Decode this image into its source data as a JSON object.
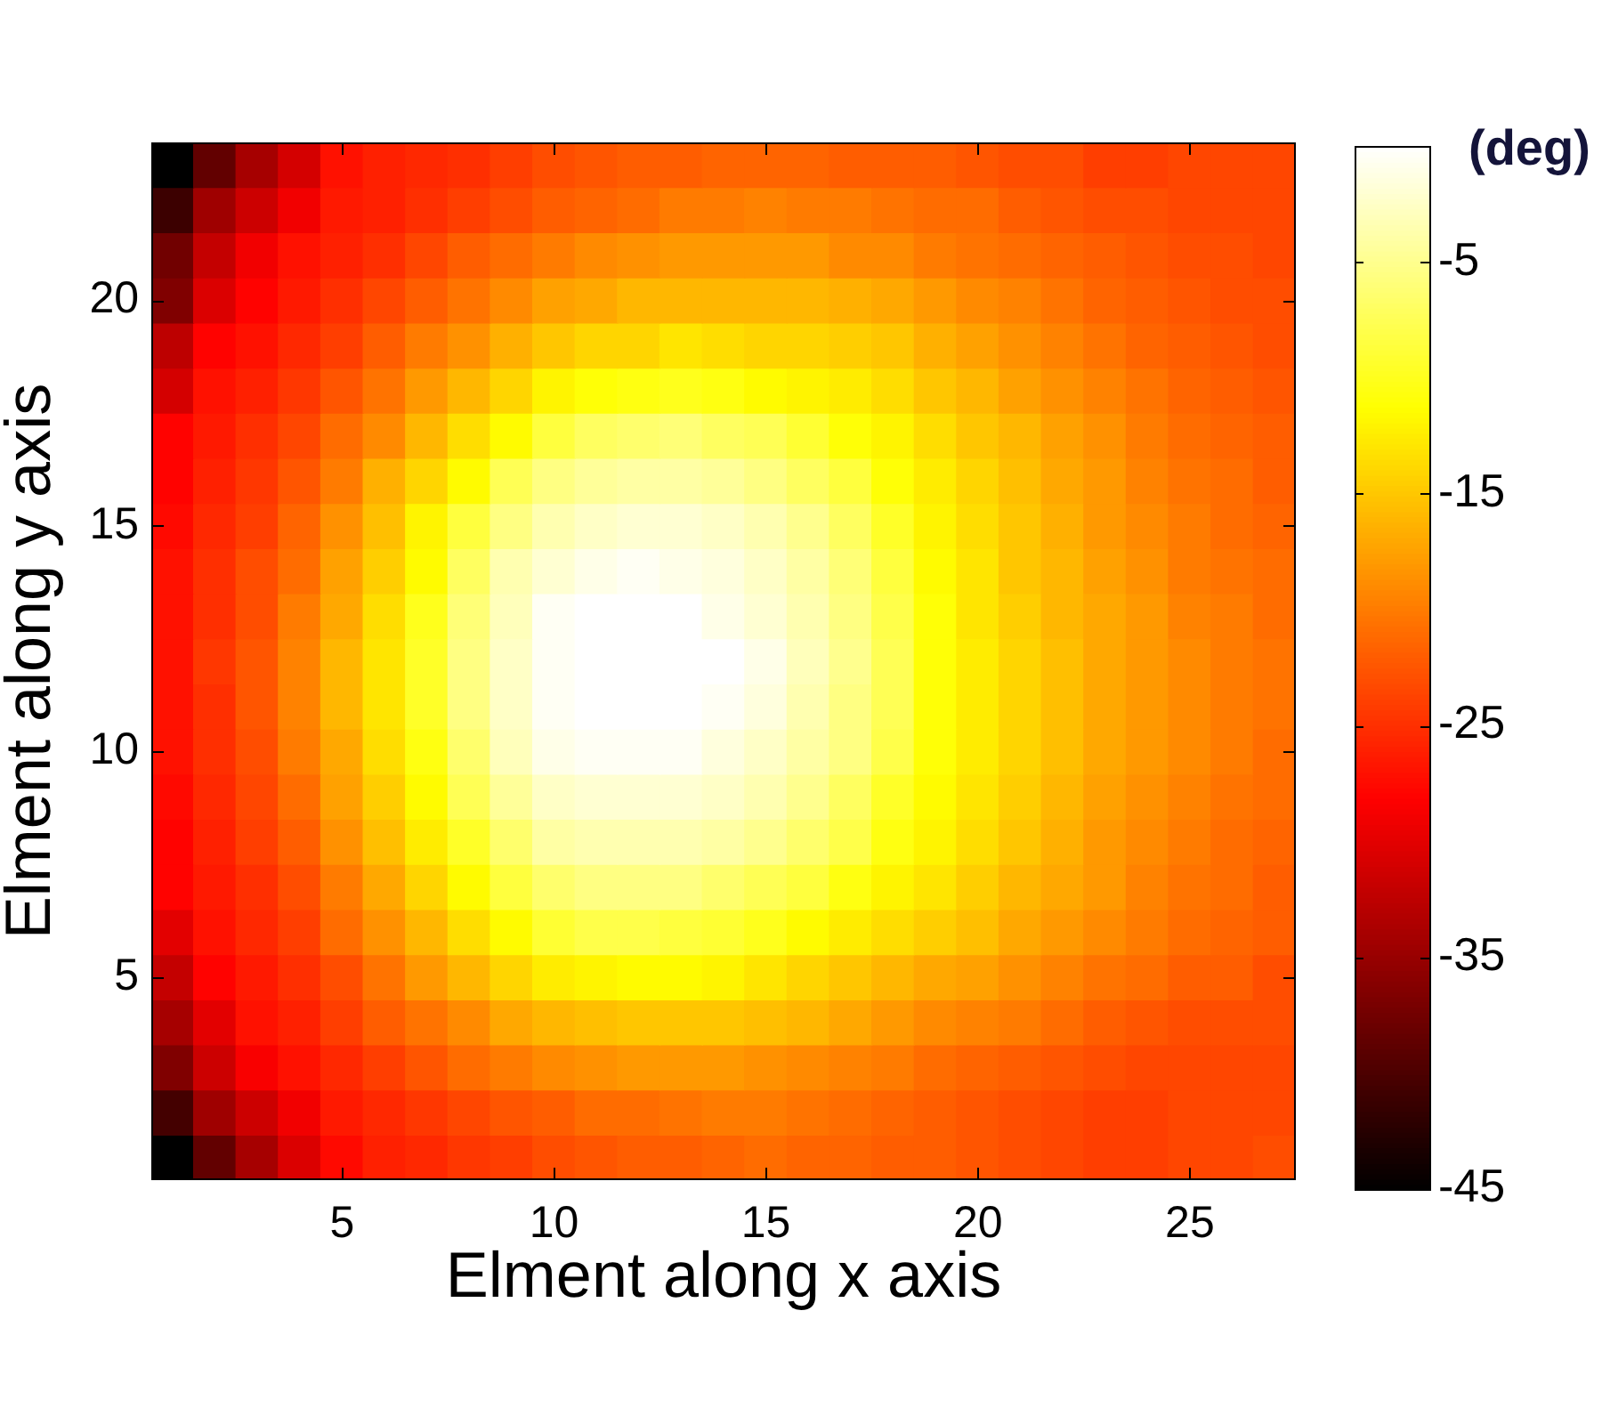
{
  "chart_data": {
    "type": "heatmap",
    "xlabel": "Elment along x axis",
    "ylabel": "Elment along y axis",
    "clabel": "(deg)",
    "categories": [
      null,
      null,
      null,
      null,
      "5",
      null,
      null,
      null,
      null,
      "10",
      null,
      null,
      null,
      null,
      "15",
      null,
      null,
      null,
      null,
      "20",
      null,
      null,
      null,
      null,
      "25",
      null,
      null
    ],
    "y_categories": [
      null,
      null,
      null,
      "20",
      null,
      null,
      null,
      null,
      "15",
      null,
      null,
      null,
      null,
      "10",
      null,
      null,
      null,
      null,
      "5",
      null,
      null,
      null,
      null
    ],
    "cells": [
      [
        -45,
        -38.5,
        -34,
        -31,
        -27,
        -26,
        -25.5,
        -25,
        -24,
        -23,
        -22.5,
        -22,
        -22,
        -21.5,
        -21.5,
        -21.5,
        -22,
        -22,
        -22,
        -22.5,
        -23,
        -23,
        -24,
        -24,
        -23.5,
        -23.5,
        -23.5
      ],
      [
        -41,
        -34.5,
        -31.5,
        -29,
        -26.5,
        -26,
        -25,
        -24,
        -23,
        -22,
        -21.5,
        -21,
        -20,
        -20,
        -19.5,
        -20,
        -20,
        -20.5,
        -21,
        -21,
        -22,
        -22.5,
        -23,
        -23,
        -23.5,
        -23.5,
        -23.5
      ],
      [
        -37.5,
        -32,
        -29,
        -27,
        -26,
        -25,
        -23.5,
        -22,
        -21,
        -20,
        -19,
        -18.5,
        -18,
        -18,
        -18,
        -18,
        -19,
        -19,
        -20,
        -20.5,
        -21,
        -21.5,
        -22,
        -22.5,
        -23,
        -23,
        -23.5
      ],
      [
        -36.5,
        -30.5,
        -28,
        -26.5,
        -25,
        -23.5,
        -22,
        -20.5,
        -19,
        -17.5,
        -17,
        -16,
        -16,
        -16,
        -16,
        -16,
        -16.5,
        -17,
        -18,
        -19,
        -19.5,
        -20.5,
        -21.5,
        -22,
        -22.5,
        -23,
        -23
      ],
      [
        -32.5,
        -28,
        -27,
        -25.5,
        -24,
        -22,
        -20,
        -18.5,
        -16.5,
        -15,
        -14,
        -14,
        -13,
        -13.5,
        -14,
        -14,
        -14.5,
        -15,
        -16.5,
        -17.5,
        -18.5,
        -19.5,
        -20.5,
        -21.5,
        -22,
        -22.5,
        -23
      ],
      [
        -31,
        -27,
        -26,
        -24.5,
        -22.5,
        -20.5,
        -18,
        -16,
        -14,
        -12,
        -11,
        -10.5,
        -10,
        -10.5,
        -11.5,
        -12,
        -12.5,
        -13.5,
        -15,
        -16,
        -17.5,
        -18.5,
        -19.5,
        -20.5,
        -21.5,
        -22,
        -22.5
      ],
      [
        -28,
        -26.5,
        -25,
        -23.5,
        -21,
        -19,
        -16,
        -13.5,
        -11.5,
        -8.5,
        -7,
        -6.5,
        -6,
        -7,
        -7.5,
        -9,
        -11,
        -12,
        -13.5,
        -15,
        -16,
        -17.5,
        -18.5,
        -20,
        -21,
        -21.5,
        -22
      ],
      [
        -28,
        -26,
        -24.5,
        -22.5,
        -20,
        -16.5,
        -14,
        -11.5,
        -7.5,
        -5.5,
        -4.5,
        -4,
        -4,
        -4.5,
        -5.5,
        -7,
        -8.5,
        -11,
        -12.5,
        -14,
        -15.5,
        -17,
        -18,
        -19.5,
        -20.5,
        -21,
        -22
      ],
      [
        -27.5,
        -25.5,
        -24,
        -21.5,
        -18.5,
        -15.5,
        -12,
        -8.5,
        -5.5,
        -3.5,
        -2.5,
        -2,
        -2,
        -2.5,
        -3.5,
        -5,
        -7,
        -9.5,
        -12,
        -13.5,
        -15,
        -16.5,
        -18,
        -19,
        -20,
        -21,
        -21.5
      ],
      [
        -27,
        -25,
        -23,
        -21,
        -17.5,
        -14.5,
        -11.5,
        -7,
        -3.5,
        -2,
        -1,
        -0.5,
        -1,
        -1.5,
        -2.5,
        -4,
        -6,
        -8.5,
        -11.5,
        -13,
        -15,
        -16,
        -17.5,
        -18.5,
        -20,
        -20.5,
        -21
      ],
      [
        -27,
        -25,
        -23,
        -20,
        -17,
        -13.5,
        -10,
        -6,
        -3,
        -0.5,
        0,
        0,
        0,
        -1,
        -2,
        -3.5,
        -5.5,
        -8,
        -11,
        -13,
        -14.5,
        -16,
        -17,
        -18,
        -19.5,
        -20,
        -21
      ],
      [
        -27,
        -24.5,
        -22.5,
        -19.5,
        -16,
        -13,
        -9.5,
        -5.5,
        -2.5,
        -0.5,
        0,
        0,
        0,
        0,
        -1,
        -3,
        -5,
        -7.5,
        -11,
        -12.5,
        -14,
        -15.5,
        -17,
        -18,
        -19,
        -20,
        -20.5
      ],
      [
        -27,
        -25,
        -22.5,
        -19.5,
        -16,
        -13,
        -9.5,
        -5.5,
        -2.5,
        -0.5,
        0,
        0,
        0,
        -0.5,
        -1.5,
        -3.5,
        -5.5,
        -7.5,
        -11,
        -12.5,
        -14,
        -15.5,
        -17,
        -18,
        -19,
        -20,
        -20.5
      ],
      [
        -27,
        -25,
        -23,
        -20,
        -17,
        -13.5,
        -10.5,
        -6.5,
        -3,
        -1,
        -0.5,
        -0.5,
        -0.5,
        -1.5,
        -2.5,
        -4,
        -5.5,
        -8,
        -11,
        -12.5,
        -14,
        -15.5,
        -17,
        -18,
        -19,
        -20,
        -21
      ],
      [
        -27.5,
        -25.5,
        -23.5,
        -21,
        -17.5,
        -14.5,
        -11.5,
        -7.5,
        -4.5,
        -2.5,
        -2,
        -2,
        -2,
        -2.5,
        -3.5,
        -5,
        -7,
        -9.5,
        -11.5,
        -13,
        -14.5,
        -16,
        -17.5,
        -18.5,
        -19.5,
        -20.5,
        -21
      ],
      [
        -28,
        -26,
        -24,
        -22,
        -18.5,
        -15.5,
        -12.5,
        -9.5,
        -6.5,
        -4,
        -3.5,
        -3.5,
        -3.5,
        -4,
        -5,
        -6.5,
        -8,
        -10.5,
        -12,
        -13.5,
        -15,
        -16.5,
        -18,
        -19,
        -20,
        -21,
        -21.5
      ],
      [
        -28,
        -26.5,
        -25,
        -23,
        -20,
        -17,
        -14,
        -11.5,
        -8.5,
        -6.5,
        -5.5,
        -5.5,
        -5.5,
        -6.5,
        -7.5,
        -8.5,
        -10.5,
        -12,
        -13,
        -14.5,
        -16,
        -17,
        -18,
        -19.5,
        -20.5,
        -21,
        -22
      ],
      [
        -30,
        -27,
        -25.5,
        -24,
        -21,
        -18.5,
        -16,
        -13.5,
        -11.5,
        -9,
        -8,
        -8,
        -8.5,
        -9,
        -10,
        -11.5,
        -12.5,
        -13.5,
        -14.5,
        -15.5,
        -17,
        -18,
        -19,
        -20,
        -21,
        -21.5,
        -22
      ],
      [
        -32,
        -28,
        -26.5,
        -25,
        -23,
        -20.5,
        -18,
        -16,
        -14,
        -12.5,
        -12,
        -11.5,
        -11.5,
        -12,
        -13,
        -14,
        -15,
        -16,
        -17,
        -17.5,
        -18.5,
        -19.5,
        -20.5,
        -21,
        -22,
        -22,
        -23
      ],
      [
        -34,
        -30,
        -27,
        -26,
        -24,
        -22,
        -20.5,
        -19,
        -17,
        -16,
        -15.5,
        -15,
        -15,
        -15,
        -15.5,
        -16,
        -17,
        -18,
        -19,
        -19.5,
        -20,
        -21,
        -22,
        -22.5,
        -23,
        -23,
        -23
      ],
      [
        -36.5,
        -31.5,
        -28.5,
        -27,
        -25.5,
        -24,
        -22.5,
        -21,
        -20,
        -19,
        -18.5,
        -18,
        -18,
        -18,
        -18.5,
        -19,
        -19.5,
        -20,
        -21,
        -21.5,
        -22,
        -22.5,
        -23,
        -23.5,
        -23.5,
        -23.5,
        -23.5
      ],
      [
        -40.5,
        -34.5,
        -31.5,
        -29,
        -26.5,
        -25.5,
        -24.5,
        -23.5,
        -22.5,
        -22,
        -21,
        -21,
        -20.5,
        -20,
        -20,
        -20.5,
        -21,
        -21.5,
        -22,
        -22.5,
        -23,
        -23.5,
        -24,
        -24,
        -23.5,
        -23.5,
        -23.5
      ],
      [
        -45,
        -38.5,
        -34,
        -30.5,
        -27.5,
        -26,
        -25.5,
        -24.5,
        -24,
        -23,
        -22.5,
        -22,
        -22,
        -21.5,
        -21,
        -21.5,
        -21.5,
        -22,
        -22,
        -22.5,
        -23,
        -23.5,
        -24,
        -24,
        -23.5,
        -23.5,
        -23
      ]
    ],
    "clim": [
      -45,
      0
    ],
    "cticks": [
      -45,
      -35,
      -25,
      -15,
      -5
    ]
  }
}
